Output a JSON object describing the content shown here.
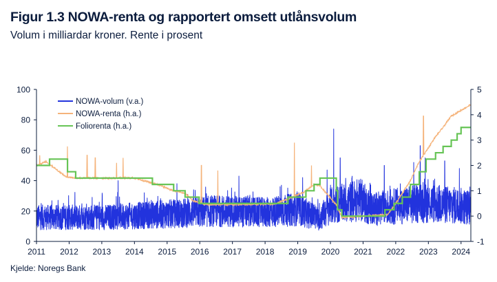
{
  "title": "Figur 1.3 NOWA-renta og rapportert omsett utlånsvolum",
  "subtitle": "Volum i milliardar kroner. Rente i prosent",
  "source": "Kjelde: Noregs Bank",
  "colors": {
    "volume": "#2233dd",
    "nowa_rate": "#f5b37a",
    "folio_rate": "#66c455",
    "axis": "#0b1c3d"
  },
  "chart_data": {
    "type": "line",
    "x_range": [
      2011,
      2024.3
    ],
    "x_ticks": [
      "2011",
      "2012",
      "2013",
      "2014",
      "2015",
      "2016",
      "2017",
      "2018",
      "2019",
      "2020",
      "2021",
      "2022",
      "2023",
      "2024"
    ],
    "left_axis": {
      "ylim": [
        0,
        100
      ],
      "ticks": [
        "0",
        "20",
        "40",
        "60",
        "80",
        "100"
      ],
      "label": "v.a."
    },
    "right_axis": {
      "ylim": [
        -1,
        5
      ],
      "ticks": [
        "-1",
        "0",
        "1",
        "2",
        "3",
        "4",
        "5"
      ],
      "label": "h.a."
    },
    "legend": [
      "NOWA-volum (v.a.)",
      "NOWA-renta (h.a.)",
      "Foliorenta (h.a.)"
    ],
    "series": [
      {
        "name": "NOWA-volum (v.a.)",
        "axis": "left",
        "kind": "noisy-daily",
        "level": [
          [
            2011,
            15
          ],
          [
            2013,
            15
          ],
          [
            2015,
            17
          ],
          [
            2016.5,
            19
          ],
          [
            2018,
            18
          ],
          [
            2019,
            20
          ],
          [
            2019.65,
            14
          ],
          [
            2020,
            22
          ],
          [
            2020.9,
            26
          ],
          [
            2021.3,
            20
          ],
          [
            2022,
            22
          ],
          [
            2023,
            24
          ],
          [
            2024,
            22
          ],
          [
            2024.3,
            21
          ]
        ],
        "peaks": [
          [
            2013.5,
            40
          ],
          [
            2015.3,
            38
          ],
          [
            2017.2,
            43
          ],
          [
            2018.5,
            37
          ],
          [
            2019.15,
            42
          ],
          [
            2019.9,
            47
          ],
          [
            2020.1,
            74
          ],
          [
            2020.3,
            55
          ],
          [
            2021.65,
            50
          ],
          [
            2022.55,
            52
          ],
          [
            2022.75,
            63
          ],
          [
            2022.9,
            55
          ],
          [
            2023.5,
            53
          ],
          [
            2023.95,
            48
          ]
        ]
      },
      {
        "name": "NOWA-renta (h.a.)",
        "axis": "right",
        "values": [
          [
            2011,
            2.0
          ],
          [
            2011.3,
            2.15
          ],
          [
            2011.9,
            1.55
          ],
          [
            2012.2,
            1.5
          ],
          [
            2014,
            1.5
          ],
          [
            2014.7,
            1.25
          ],
          [
            2015.2,
            1.0
          ],
          [
            2015.55,
            0.9
          ],
          [
            2015.8,
            0.6
          ],
          [
            2016.2,
            0.45
          ],
          [
            2016.8,
            0.45
          ],
          [
            2018.3,
            0.48
          ],
          [
            2018.75,
            0.7
          ],
          [
            2019.2,
            0.95
          ],
          [
            2019.5,
            1.25
          ],
          [
            2019.68,
            1.2
          ],
          [
            2020.18,
            0.45
          ],
          [
            2020.35,
            -0.05
          ],
          [
            2021.75,
            0.05
          ],
          [
            2021.95,
            0.4
          ],
          [
            2022.2,
            0.9
          ],
          [
            2022.45,
            1.4
          ],
          [
            2022.7,
            2.1
          ],
          [
            2022.95,
            2.6
          ],
          [
            2023.2,
            3.1
          ],
          [
            2023.45,
            3.5
          ],
          [
            2023.7,
            3.95
          ],
          [
            2024.3,
            4.4
          ]
        ],
        "spikes": [
          [
            2011.1,
            2.4
          ],
          [
            2011.95,
            2.75
          ],
          [
            2012.55,
            2.4
          ],
          [
            2012.8,
            2.3
          ],
          [
            2013.45,
            2.1
          ],
          [
            2013.65,
            2.3
          ],
          [
            2016.05,
            2.0
          ],
          [
            2016.55,
            1.8
          ],
          [
            2018.9,
            2.9
          ],
          [
            2019.42,
            2.0
          ],
          [
            2022.85,
            3.95
          ]
        ]
      },
      {
        "name": "Foliorenta (h.a.)",
        "axis": "right",
        "kind": "step",
        "values": [
          [
            2011,
            2.0
          ],
          [
            2011.4,
            2.25
          ],
          [
            2011.95,
            1.75
          ],
          [
            2012.2,
            1.5
          ],
          [
            2014.3,
            1.5
          ],
          [
            2014.55,
            1.25
          ],
          [
            2015.2,
            1.0
          ],
          [
            2015.55,
            0.75
          ],
          [
            2015.98,
            0.5
          ],
          [
            2016.2,
            0.5
          ],
          [
            2018.7,
            0.75
          ],
          [
            2019.25,
            1.0
          ],
          [
            2019.5,
            1.25
          ],
          [
            2019.68,
            1.5
          ],
          [
            2020.18,
            1.0
          ],
          [
            2020.22,
            0.25
          ],
          [
            2020.35,
            0.0
          ],
          [
            2021.67,
            0.25
          ],
          [
            2021.95,
            0.5
          ],
          [
            2022.2,
            0.75
          ],
          [
            2022.45,
            1.25
          ],
          [
            2022.72,
            1.75
          ],
          [
            2022.93,
            2.25
          ],
          [
            2023.22,
            2.5
          ],
          [
            2023.45,
            2.75
          ],
          [
            2023.7,
            3.0
          ],
          [
            2023.88,
            3.25
          ],
          [
            2024.0,
            3.5
          ],
          [
            2024.3,
            3.5
          ]
        ]
      }
    ]
  }
}
